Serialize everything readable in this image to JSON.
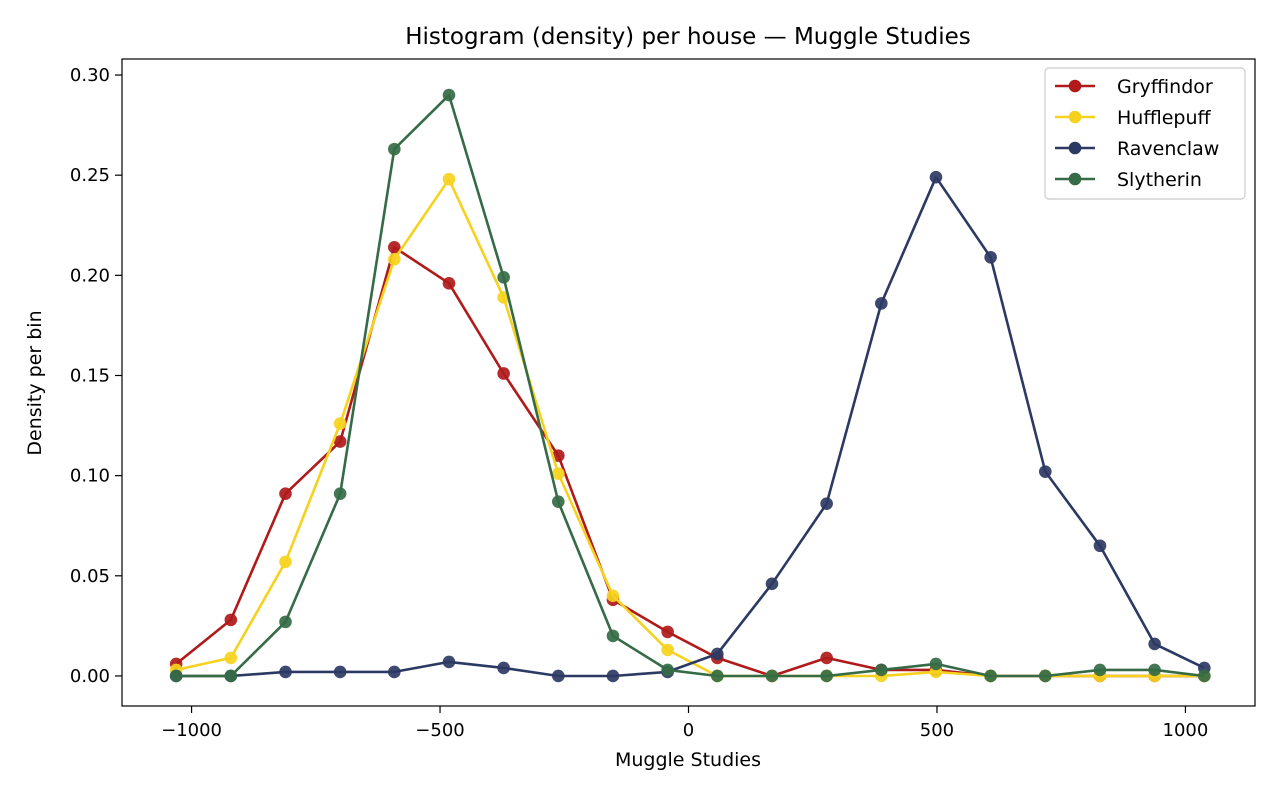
{
  "chart_data": {
    "type": "line",
    "title": "Histogram (density) per house — Muggle Studies",
    "xlabel": "Muggle Studies",
    "ylabel": "Density per bin",
    "xlim": [
      -1140,
      1140
    ],
    "ylim": [
      -0.015,
      0.308
    ],
    "xticks": [
      -1000,
      -500,
      0,
      500,
      1000
    ],
    "xtick_labels": [
      "−1000",
      "−500",
      "0",
      "500",
      "1000"
    ],
    "yticks": [
      0.0,
      0.05,
      0.1,
      0.15,
      0.2,
      0.25,
      0.3
    ],
    "ytick_labels": [
      "0.00",
      "0.05",
      "0.10",
      "0.15",
      "0.20",
      "0.25",
      "0.30"
    ],
    "grid": false,
    "legend_position": "top-right",
    "x": [
      -1031,
      -921,
      -811,
      -701,
      -592,
      -482,
      -372,
      -262,
      -152,
      -42,
      58,
      168,
      278,
      388,
      498,
      608,
      718,
      828,
      938,
      1038
    ],
    "series": [
      {
        "name": "Gryffindor",
        "color": "#b01a1a",
        "values": [
          0.006,
          0.028,
          0.091,
          0.117,
          0.214,
          0.196,
          0.151,
          0.11,
          0.038,
          0.022,
          0.009,
          0.0,
          0.009,
          0.003,
          0.003,
          0.0,
          0.0,
          0.0,
          0.0,
          0.0
        ]
      },
      {
        "name": "Hufflepuff",
        "color": "#f6d21e",
        "values": [
          0.003,
          0.009,
          0.057,
          0.126,
          0.208,
          0.248,
          0.189,
          0.101,
          0.04,
          0.013,
          0.0,
          0.0,
          0.0,
          0.0,
          0.002,
          0.0,
          0.0,
          0.0,
          0.0,
          0.0
        ]
      },
      {
        "name": "Ravenclaw",
        "color": "#2c3a63",
        "values": [
          0.0,
          0.0,
          0.002,
          0.002,
          0.002,
          0.007,
          0.004,
          0.0,
          0.0,
          0.002,
          0.011,
          0.046,
          0.086,
          0.186,
          0.249,
          0.209,
          0.102,
          0.065,
          0.016,
          0.004
        ]
      },
      {
        "name": "Slytherin",
        "color": "#356b47",
        "values": [
          0.0,
          0.0,
          0.027,
          0.091,
          0.263,
          0.29,
          0.199,
          0.087,
          0.02,
          0.003,
          0.0,
          0.0,
          0.0,
          0.003,
          0.006,
          0.0,
          0.0,
          0.003,
          0.003,
          0.0
        ]
      }
    ]
  }
}
